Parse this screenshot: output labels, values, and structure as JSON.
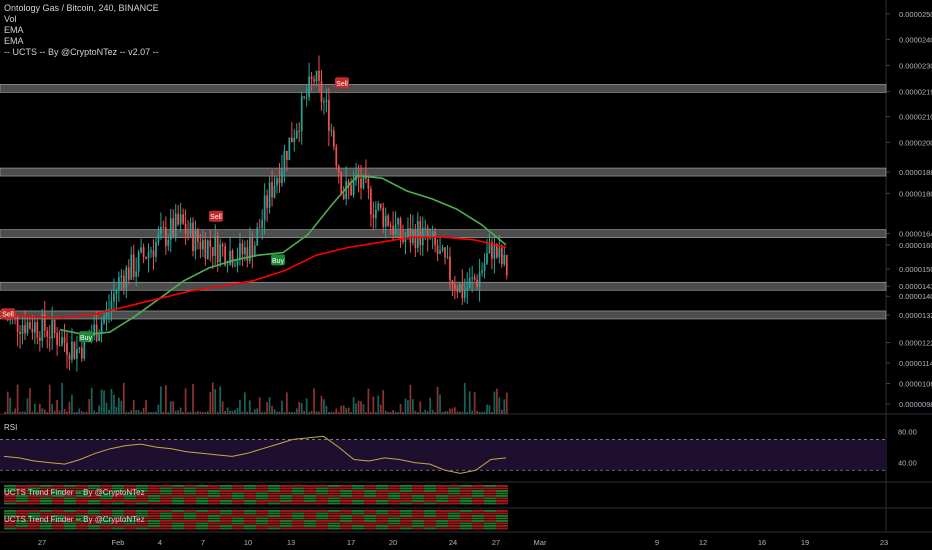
{
  "legend": {
    "title": "Ontology Gas / Bitcoin, 240, BINANCE",
    "vol": "Vol",
    "ema1": "EMA",
    "ema2": "EMA",
    "ucts": "-- UCTS -- By @CryptoNTez -- v2.07 --"
  },
  "rsi_label": "RSI",
  "trend1_label": "UCTS Trend Finder -- By @CryptoNTez",
  "trend2_label": "UCTS Trend Finder -- By @CryptoNTez",
  "colors": {
    "background": "#000000",
    "up": "#26a69a",
    "down": "#ef5350",
    "ema_fast": "#4caf50",
    "ema_slow": "#ff0000",
    "rsi_line": "#c9a64a",
    "rsi_band": "#1e0f2e",
    "zone": "#8c8c8c",
    "buy": "#1b8a3a",
    "sell": "#c62828"
  },
  "chart_data": {
    "type": "candlestick",
    "symbol": "Ontology Gas / Bitcoin",
    "interval": "240",
    "exchange": "BINANCE",
    "y_ticks": [
      "0.00002500",
      "0.00002400",
      "0.00002300",
      "0.00002197",
      "0.00002100",
      "0.00002000",
      "0.00001884",
      "0.00001800",
      "0.00001644",
      "0.00001600",
      "0.00001506",
      "0.00001439",
      "0.00001400",
      "0.00001327",
      "0.00001220",
      "0.00001140",
      "0.00001060",
      "0.00000980"
    ],
    "x_ticks": [
      "27",
      "Feb",
      "4",
      "7",
      "10",
      "13",
      "17",
      "20",
      "24",
      "27",
      "Mar",
      "9",
      "12",
      "16",
      "19",
      "23"
    ],
    "zones": [
      2.21e-05,
      1.884e-05,
      1.644e-05,
      1.439e-05,
      1.327e-05
    ],
    "price_path": [
      [
        1.32e-05,
        1.3e-05
      ],
      [
        1.3e-05,
        1.29e-05
      ],
      [
        1.29e-05,
        1.27e-05
      ],
      [
        1.27e-05,
        1.23e-05
      ],
      [
        1.23e-05,
        1.19e-05
      ],
      [
        1.19e-05,
        1.25e-05
      ],
      [
        1.25e-05,
        1.33e-05
      ],
      [
        1.33e-05,
        1.48e-05
      ],
      [
        1.48e-05,
        1.52e-05
      ],
      [
        1.52e-05,
        1.59e-05
      ],
      [
        1.59e-05,
        1.64e-05
      ],
      [
        1.64e-05,
        1.68e-05
      ],
      [
        1.68e-05,
        1.62e-05
      ],
      [
        1.62e-05,
        1.6e-05
      ],
      [
        1.6e-05,
        1.58e-05
      ],
      [
        1.58e-05,
        1.56e-05
      ],
      [
        1.56e-05,
        1.61e-05
      ],
      [
        1.61e-05,
        1.8e-05
      ],
      [
        1.8e-05,
        1.95e-05
      ],
      [
        1.95e-05,
        2.1e-05
      ],
      [
        2.1e-05,
        2.25e-05
      ],
      [
        2.25e-05,
        2.1e-05
      ],
      [
        2.1e-05,
        1.8e-05
      ],
      [
        1.8e-05,
        1.85e-05
      ],
      [
        1.85e-05,
        1.75e-05
      ],
      [
        1.75e-05,
        1.7e-05
      ],
      [
        1.7e-05,
        1.62e-05
      ],
      [
        1.62e-05,
        1.65e-05
      ],
      [
        1.65e-05,
        1.6e-05
      ],
      [
        1.6e-05,
        1.5e-05
      ],
      [
        1.5e-05,
        1.42e-05
      ],
      [
        1.42e-05,
        1.47e-05
      ],
      [
        1.47e-05,
        1.59e-05
      ],
      [
        1.59e-05,
        1.5e-05
      ]
    ],
    "ema_fast": [
      1.27e-05,
      1.25e-05,
      1.26e-05,
      1.32e-05,
      1.39e-05,
      1.46e-05,
      1.51e-05,
      1.54e-05,
      1.56e-05,
      1.57e-05,
      1.64e-05,
      1.76e-05,
      1.87e-05,
      1.86e-05,
      1.81e-05,
      1.78e-05,
      1.74e-05,
      1.68e-05,
      1.6e-05
    ],
    "ema_slow": [
      1.33e-05,
      1.32e-05,
      1.315e-05,
      1.33e-05,
      1.36e-05,
      1.39e-05,
      1.42e-05,
      1.44e-05,
      1.46e-05,
      1.5e-05,
      1.56e-05,
      1.59e-05,
      1.61e-05,
      1.63e-05,
      1.63e-05,
      1.62e-05,
      1.59e-05
    ],
    "signals": [
      {
        "label": "Sell",
        "price": 1.33e-05
      },
      {
        "label": "Buy",
        "price": 1.24e-05
      },
      {
        "label": "Sell",
        "price": 1.71e-05
      },
      {
        "label": "Buy",
        "price": 1.54e-05
      },
      {
        "label": "Sell",
        "price": 2.23e-05
      }
    ],
    "rsi": {
      "ticks": [
        "80.00",
        "40.00"
      ],
      "upper": 70,
      "lower": 30,
      "values": [
        48,
        46,
        42,
        40,
        38,
        44,
        52,
        58,
        62,
        64,
        60,
        58,
        54,
        52,
        50,
        48,
        52,
        58,
        64,
        70,
        72,
        74,
        60,
        44,
        42,
        46,
        44,
        40,
        38,
        30,
        26,
        30,
        44,
        46
      ]
    }
  }
}
